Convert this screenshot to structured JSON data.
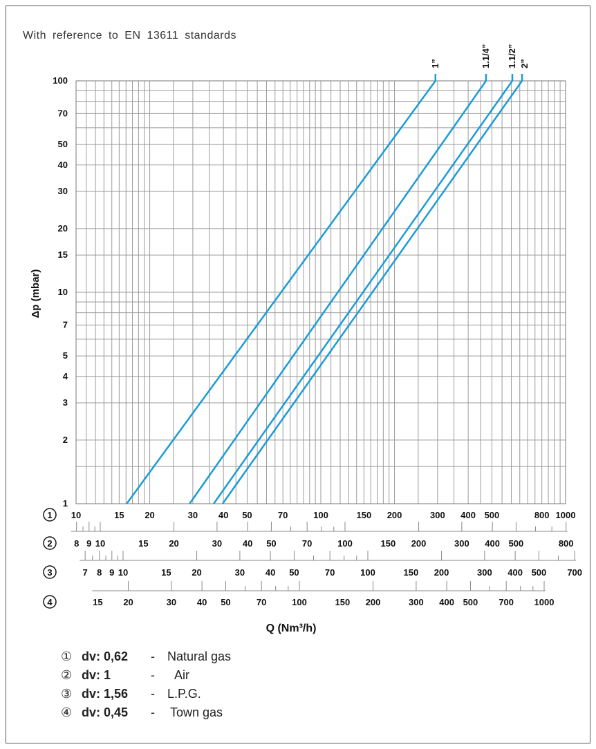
{
  "note": "With reference to EN 13611 standards",
  "chart_data": {
    "type": "line",
    "title": "",
    "xlabel": "Q (Nm³/h)",
    "ylabel": "Δp (mbar)",
    "xscale": "log",
    "yscale": "log",
    "xlim": [
      10,
      1000
    ],
    "ylim": [
      1,
      100
    ],
    "grid": true,
    "line_color": "#1a9bd7",
    "y_ticks": [
      100,
      70,
      50,
      40,
      30,
      20,
      15,
      10,
      7,
      5,
      4,
      3,
      2,
      1
    ],
    "series": [
      {
        "name": "1”",
        "x": [
          16.1,
          294
        ],
        "y": [
          1,
          100
        ]
      },
      {
        "name": "1.1/4”",
        "x": [
          29.1,
          473
        ],
        "y": [
          1,
          100
        ]
      },
      {
        "name": "1.1/2”",
        "x": [
          36.5,
          606
        ],
        "y": [
          1,
          100
        ]
      },
      {
        "name": "2”",
        "x": [
          39.7,
          664
        ],
        "y": [
          1,
          100
        ]
      }
    ],
    "x_scales": [
      {
        "id": "1",
        "ticks": [
          10,
          15,
          20,
          30,
          40,
          50,
          70,
          100,
          150,
          200,
          300,
          400,
          500,
          800,
          1000
        ]
      },
      {
        "id": "2",
        "ticks": [
          8,
          9,
          10,
          15,
          20,
          30,
          40,
          50,
          70,
          100,
          150,
          200,
          300,
          400,
          500,
          800
        ]
      },
      {
        "id": "3",
        "ticks": [
          7,
          8,
          9,
          10,
          15,
          20,
          30,
          40,
          50,
          70,
          100,
          150,
          200,
          300,
          400,
          500,
          700
        ]
      },
      {
        "id": "4",
        "ticks": [
          15,
          20,
          30,
          40,
          50,
          70,
          100,
          150,
          200,
          300,
          400,
          500,
          700,
          1000
        ]
      }
    ]
  },
  "legend": [
    {
      "num": "①",
      "dv": "dv: 0,62",
      "dash": "-",
      "gas": "Natural gas"
    },
    {
      "num": "②",
      "dv": "dv: 1",
      "dash": "-",
      "gas": "Air"
    },
    {
      "num": "③",
      "dv": "dv: 1,56",
      "dash": "-",
      "gas": "L.P.G."
    },
    {
      "num": "④",
      "dv": "dv: 0,45",
      "dash": "-",
      "gas": "Town gas"
    }
  ]
}
